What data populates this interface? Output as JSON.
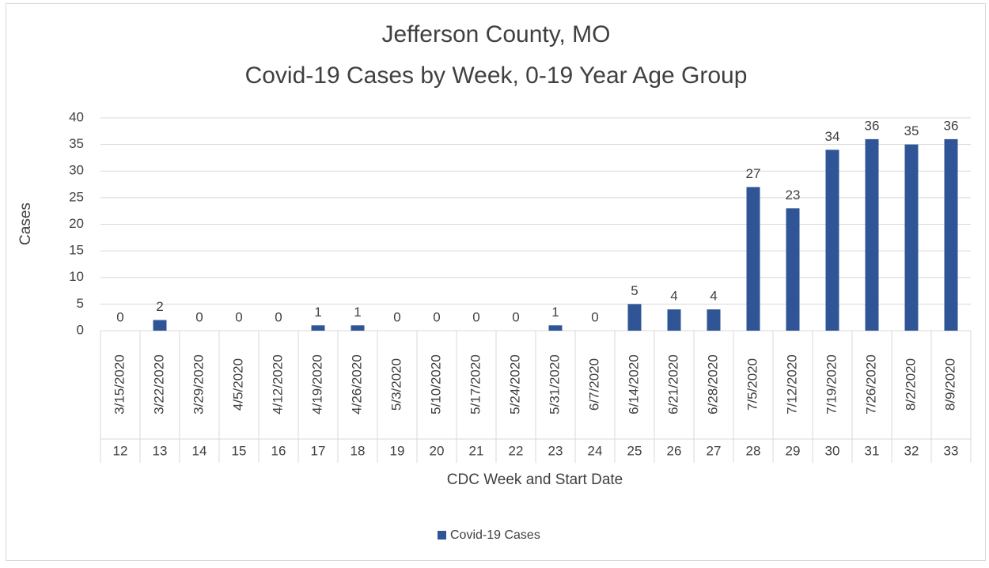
{
  "chart_data": {
    "type": "bar",
    "title": "Jefferson County, MO",
    "subtitle": "Covid-19 Cases by Week, 0-19 Year Age Group",
    "y_label": "Cases",
    "x_label": "CDC Week and Start Date",
    "categories": [
      "3/15/2020",
      "3/22/2020",
      "3/29/2020",
      "4/5/2020",
      "4/12/2020",
      "4/19/2020",
      "4/26/2020",
      "5/3/2020",
      "5/10/2020",
      "5/17/2020",
      "5/24/2020",
      "5/31/2020",
      "6/7/2020",
      "6/14/2020",
      "6/21/2020",
      "6/28/2020",
      "7/5/2020",
      "7/12/2020",
      "7/19/2020",
      "7/26/2020",
      "8/2/2020",
      "8/9/2020"
    ],
    "weeks": [
      12,
      13,
      14,
      15,
      16,
      17,
      18,
      19,
      20,
      21,
      22,
      23,
      24,
      25,
      26,
      27,
      28,
      29,
      30,
      31,
      32,
      33
    ],
    "series": [
      {
        "name": "Covid-19 Cases",
        "color": "#2f5597",
        "values": [
          0,
          2,
          0,
          0,
          0,
          1,
          1,
          0,
          0,
          0,
          0,
          1,
          0,
          5,
          4,
          4,
          27,
          23,
          34,
          36,
          35,
          36
        ]
      }
    ],
    "ylim": [
      0,
      40
    ],
    "yticks": [
      0,
      5,
      10,
      15,
      20,
      25,
      30,
      35,
      40
    ],
    "grid": true,
    "legend": "bottom"
  }
}
